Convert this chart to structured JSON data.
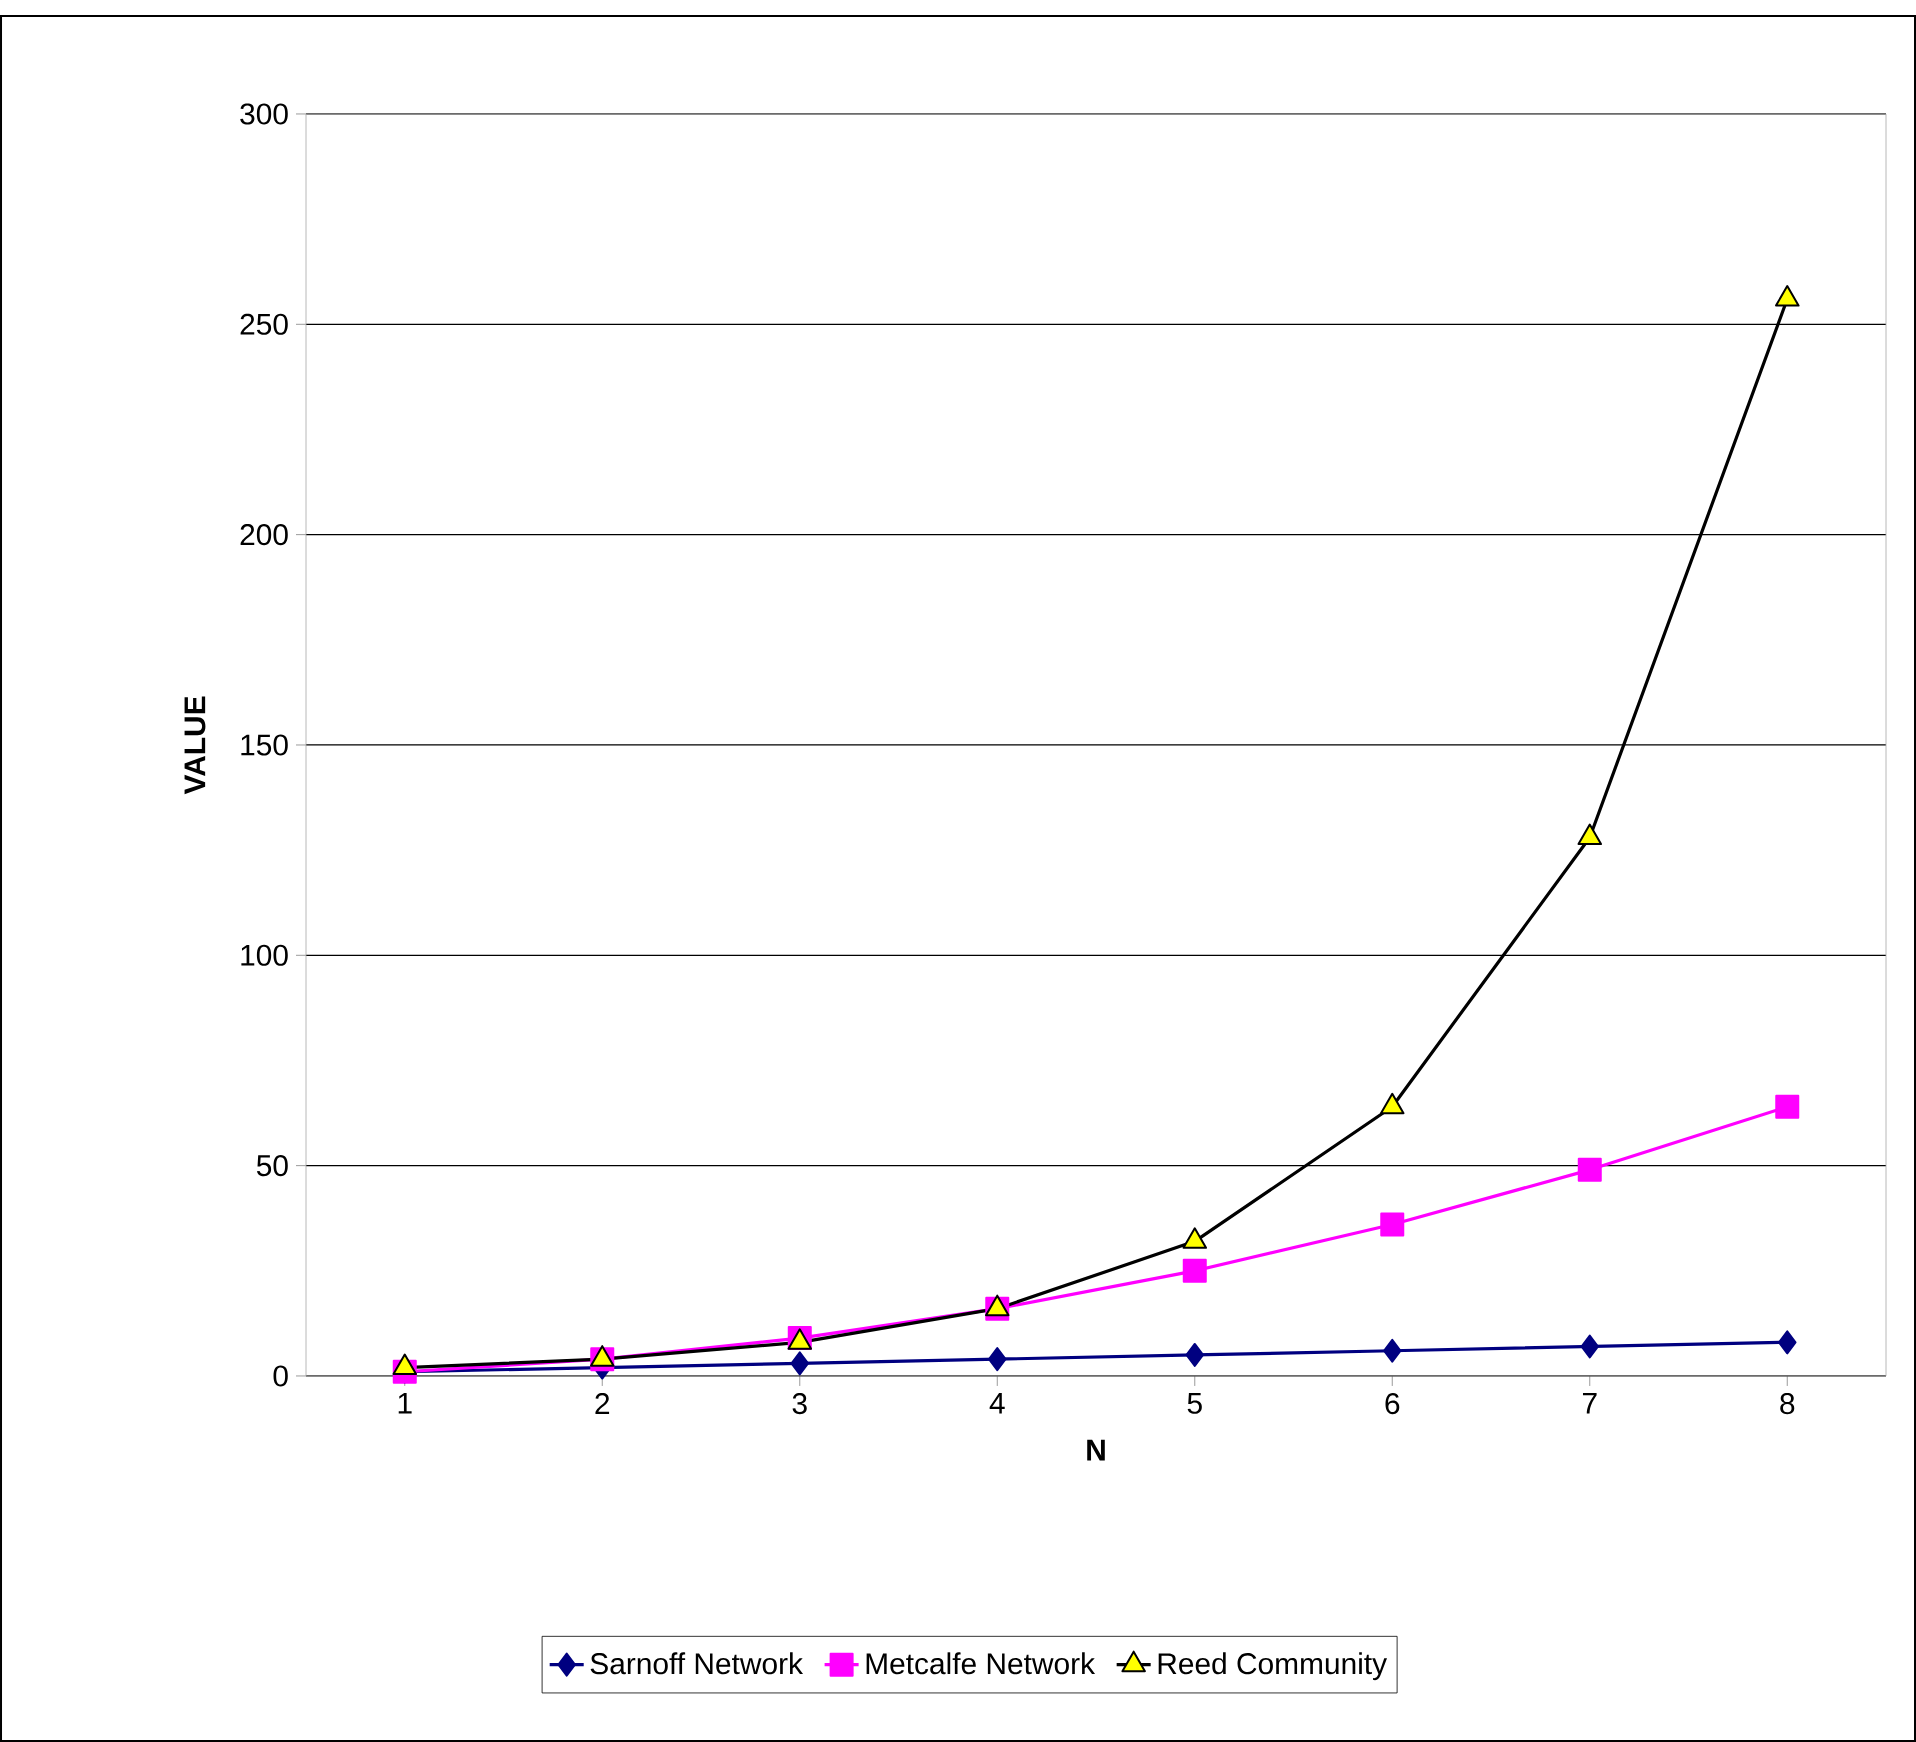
{
  "chart_data": {
    "type": "line",
    "xlabel": "N",
    "ylabel": "VALUE",
    "categories": [
      "1",
      "2",
      "3",
      "4",
      "5",
      "6",
      "7",
      "8"
    ],
    "ylim": [
      0,
      300
    ],
    "yticks": [
      0,
      50,
      100,
      150,
      200,
      250,
      300
    ],
    "grid": "y",
    "legend": "bottom",
    "line_style": "solid",
    "series": [
      {
        "name": "Sarnoff Network",
        "color": "#000080",
        "marker": "diamond",
        "values": [
          1,
          2,
          3,
          4,
          5,
          6,
          7,
          8
        ]
      },
      {
        "name": "Metcalfe Network",
        "color": "#ff00ff",
        "marker": "square",
        "values": [
          1,
          4,
          9,
          16,
          25,
          36,
          49,
          64
        ]
      },
      {
        "name": "Reed Community",
        "color": "#000000",
        "marker": "triangle",
        "values": [
          2,
          4,
          8,
          16,
          32,
          64,
          128,
          256
        ]
      }
    ]
  }
}
